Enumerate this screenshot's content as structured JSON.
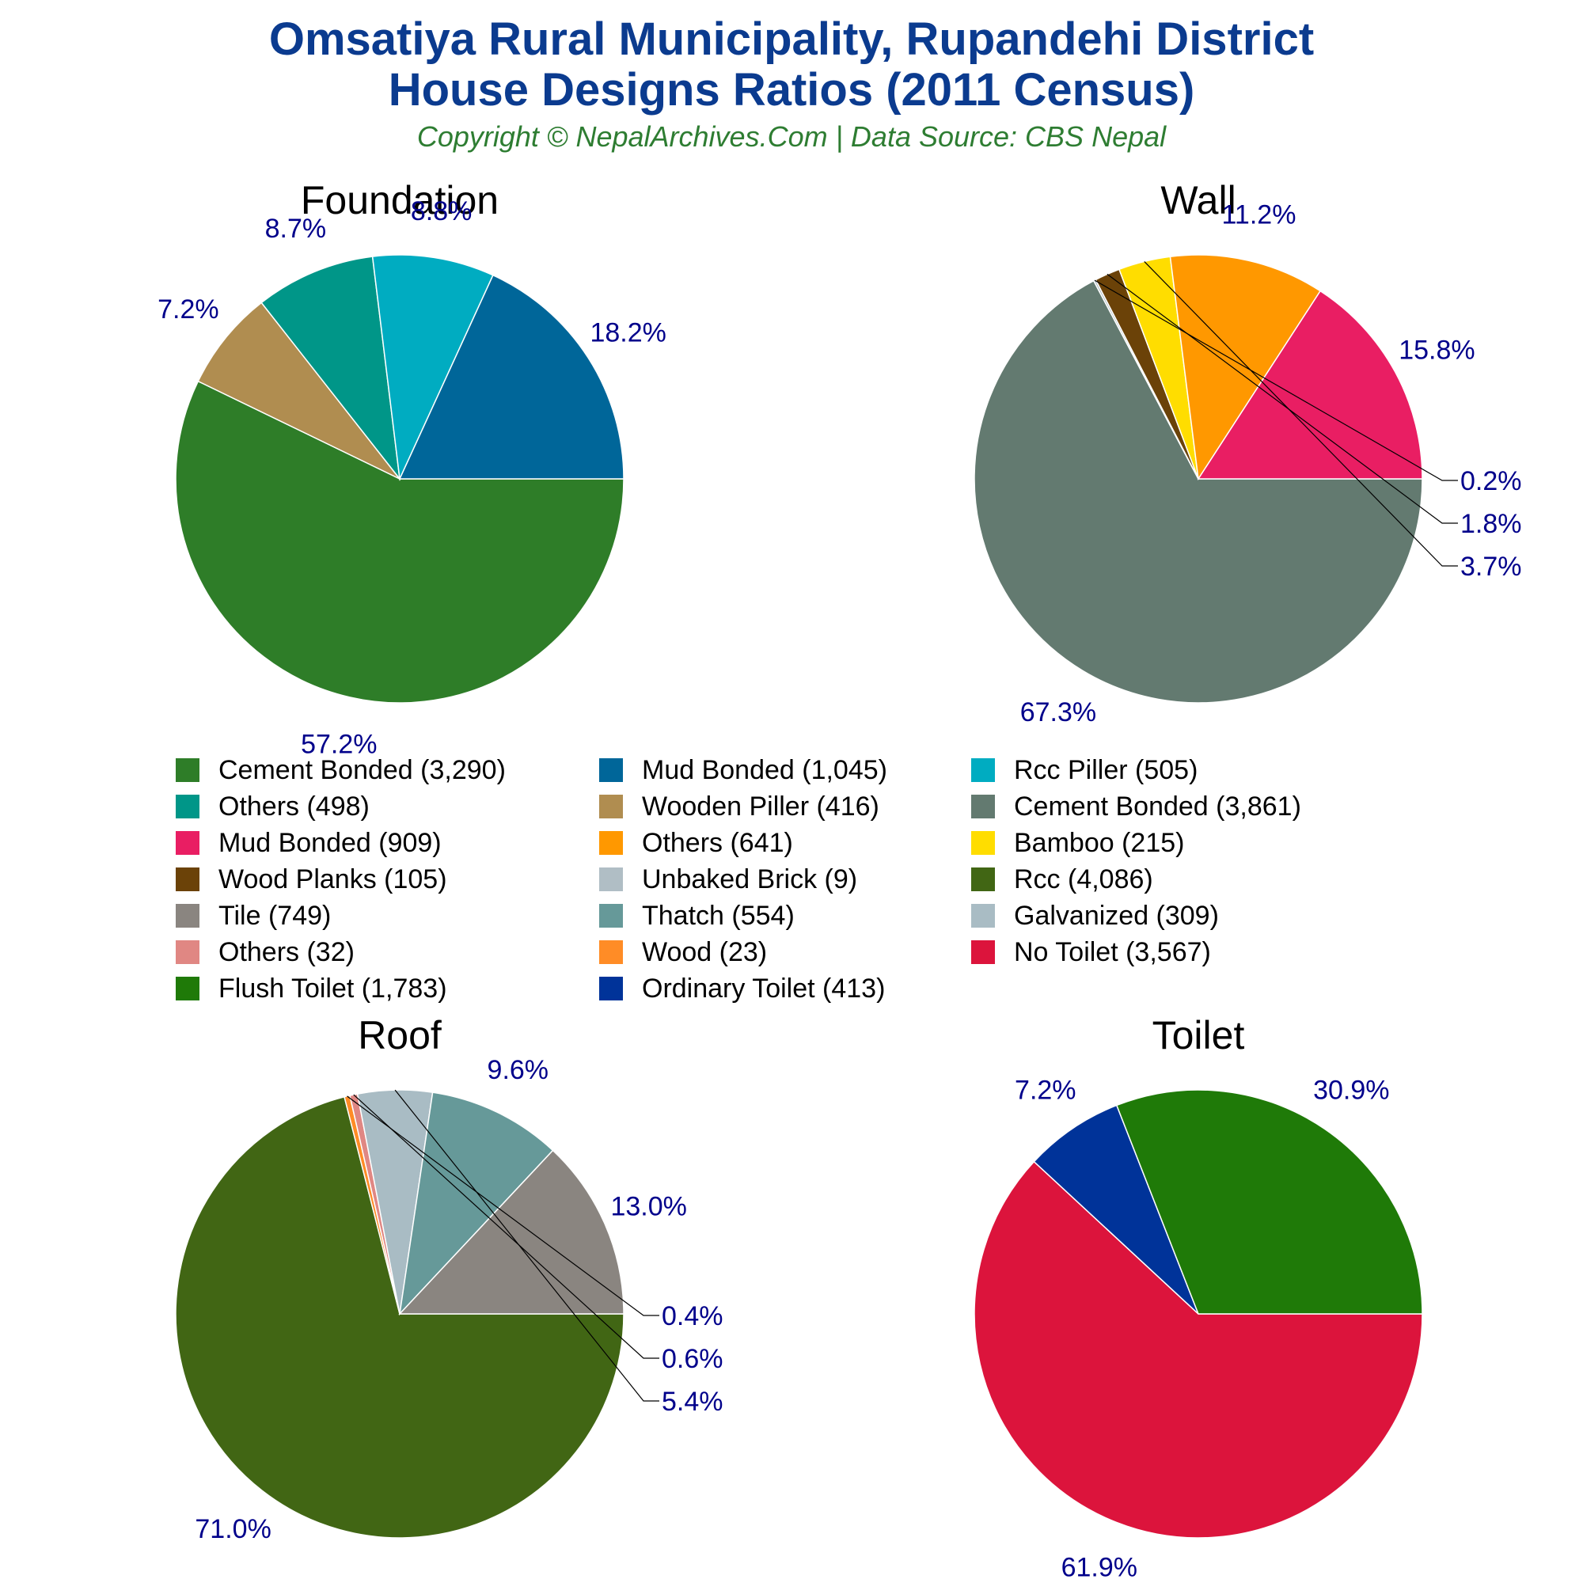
{
  "header": {
    "title_line1": "Omsatiya Rural Municipality, Rupandehi District",
    "title_line2": "House Designs Ratios (2011 Census)",
    "subtitle": "Copyright © NepalArchives.Com | Data Source: CBS Nepal"
  },
  "colors": {
    "title": "#0b3b8f",
    "subtitle": "#2e7d32",
    "percent_label": "#00008b"
  },
  "chart_data": [
    {
      "type": "pie",
      "title": "Foundation",
      "slices": [
        {
          "label": "Cement Bonded",
          "value": 3290,
          "percent": "57.2%",
          "color": "#2e7d28"
        },
        {
          "label": "Wooden Piller",
          "value": 416,
          "percent": "7.2%",
          "color": "#b08d50"
        },
        {
          "label": "Others",
          "value": 498,
          "percent": "8.7%",
          "color": "#009688"
        },
        {
          "label": "Rcc Piller",
          "value": 505,
          "percent": "8.8%",
          "color": "#00acc1"
        },
        {
          "label": "Mud Bonded",
          "value": 1045,
          "percent": "18.2%",
          "color": "#006699"
        }
      ]
    },
    {
      "type": "pie",
      "title": "Wall",
      "slices": [
        {
          "label": "Cement Bonded",
          "value": 3861,
          "percent": "67.3%",
          "color": "#637a70"
        },
        {
          "label": "Unbaked Brick",
          "value": 9,
          "percent": "0.2%",
          "color": "#b0bec5"
        },
        {
          "label": "Wood Planks",
          "value": 105,
          "percent": "1.8%",
          "color": "#6b4208"
        },
        {
          "label": "Bamboo",
          "value": 215,
          "percent": "3.7%",
          "color": "#ffdd00"
        },
        {
          "label": "Others",
          "value": 641,
          "percent": "11.2%",
          "color": "#ff9800"
        },
        {
          "label": "Mud Bonded",
          "value": 909,
          "percent": "15.8%",
          "color": "#e91e63"
        }
      ]
    },
    {
      "type": "pie",
      "title": "Roof",
      "slices": [
        {
          "label": "Rcc",
          "value": 4086,
          "percent": "71.0%",
          "color": "#416614"
        },
        {
          "label": "Wood",
          "value": 23,
          "percent": "0.4%",
          "color": "#ff8c26"
        },
        {
          "label": "Others",
          "value": 32,
          "percent": "0.6%",
          "color": "#e08783"
        },
        {
          "label": "Galvanized",
          "value": 309,
          "percent": "5.4%",
          "color": "#a9bcc4"
        },
        {
          "label": "Thatch",
          "value": 554,
          "percent": "9.6%",
          "color": "#669999"
        },
        {
          "label": "Tile",
          "value": 749,
          "percent": "13.0%",
          "color": "#8a8580"
        }
      ]
    },
    {
      "type": "pie",
      "title": "Toilet",
      "slices": [
        {
          "label": "No Toilet",
          "value": 3567,
          "percent": "61.9%",
          "color": "#dc143c"
        },
        {
          "label": "Ordinary Toilet",
          "value": 413,
          "percent": "7.2%",
          "color": "#003399"
        },
        {
          "label": "Flush Toilet",
          "value": 1783,
          "percent": "30.9%",
          "color": "#1f7a08"
        }
      ]
    }
  ],
  "legend": {
    "items": [
      {
        "label": "Cement Bonded (3,290)",
        "color": "#2e7d28"
      },
      {
        "label": "Mud Bonded (1,045)",
        "color": "#006699"
      },
      {
        "label": "Rcc Piller (505)",
        "color": "#00acc1"
      },
      {
        "label": "Others (498)",
        "color": "#009688"
      },
      {
        "label": "Wooden Piller (416)",
        "color": "#b08d50"
      },
      {
        "label": "Cement Bonded (3,861)",
        "color": "#637a70"
      },
      {
        "label": "Mud Bonded (909)",
        "color": "#e91e63"
      },
      {
        "label": "Others (641)",
        "color": "#ff9800"
      },
      {
        "label": "Bamboo (215)",
        "color": "#ffdd00"
      },
      {
        "label": "Wood Planks (105)",
        "color": "#6b4208"
      },
      {
        "label": "Unbaked Brick (9)",
        "color": "#b0bec5"
      },
      {
        "label": "Rcc (4,086)",
        "color": "#416614"
      },
      {
        "label": "Tile (749)",
        "color": "#8a8580"
      },
      {
        "label": "Thatch (554)",
        "color": "#669999"
      },
      {
        "label": "Galvanized (309)",
        "color": "#a9bcc4"
      },
      {
        "label": "Others (32)",
        "color": "#e08783"
      },
      {
        "label": "Wood (23)",
        "color": "#ff8c26"
      },
      {
        "label": "No Toilet (3,567)",
        "color": "#dc143c"
      },
      {
        "label": "Flush Toilet (1,783)",
        "color": "#1f7a08"
      },
      {
        "label": "Ordinary Toilet (413)",
        "color": "#003399"
      }
    ]
  }
}
